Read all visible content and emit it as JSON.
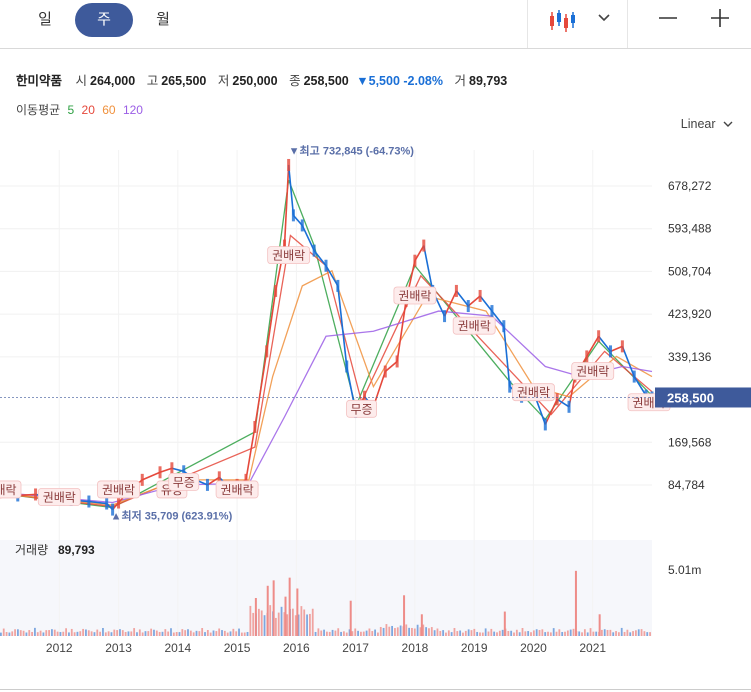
{
  "tabs": [
    {
      "label": "일",
      "active": false
    },
    {
      "label": "주",
      "active": true
    },
    {
      "label": "월",
      "active": false
    }
  ],
  "toolbar": {
    "chart_type_icon": "candlestick-icon",
    "dropdown_icon": "chevron-down-icon",
    "zoom_out_label": "—",
    "zoom_in_label": "+"
  },
  "stock": {
    "name": "한미약품",
    "open_label": "시",
    "open": "264,000",
    "high_label": "고",
    "high": "265,500",
    "low_label": "저",
    "low": "250,000",
    "close_label": "종",
    "close": "258,500",
    "change": "▼5,500",
    "change_pct": "-2.08%",
    "volume_label": "거",
    "volume": "89,793"
  },
  "moving_average": {
    "label": "이동평균",
    "periods": [
      {
        "label": "5",
        "color": "#2ea043"
      },
      {
        "label": "20",
        "color": "#e5483b"
      },
      {
        "label": "60",
        "color": "#f0913c"
      },
      {
        "label": "120",
        "color": "#9b5ee6"
      }
    ]
  },
  "scale_mode": "Linear",
  "colors": {
    "up": "#e5483b",
    "down": "#1a6fd6",
    "accent": "#3e5a9b"
  },
  "chart_data": {
    "type": "line",
    "x_labels": [
      "2012",
      "2013",
      "2014",
      "2015",
      "2016",
      "2017",
      "2018",
      "2019",
      "2020",
      "2021"
    ],
    "y_ticks": [
      678272,
      593488,
      508704,
      423920,
      339136,
      169568,
      84784
    ],
    "ylim": [
      0,
      780000
    ],
    "current_price": 258500,
    "current_price_label": "258,500",
    "price_series": [
      [
        "2011.0",
        70000
      ],
      [
        "2011.3",
        64000
      ],
      [
        "2011.6",
        66000
      ],
      [
        "2011.9",
        60000
      ],
      [
        "2012.2",
        55000
      ],
      [
        "2012.5",
        52000
      ],
      [
        "2012.8",
        48000
      ],
      [
        "2012.9",
        36000
      ],
      [
        "2013.0",
        50000
      ],
      [
        "2013.2",
        75000
      ],
      [
        "2013.4",
        95000
      ],
      [
        "2013.7",
        110000
      ],
      [
        "2013.9",
        118000
      ],
      [
        "2014.1",
        112000
      ],
      [
        "2014.3",
        95000
      ],
      [
        "2014.5",
        85000
      ],
      [
        "2014.7",
        100000
      ],
      [
        "2014.9",
        75000
      ],
      [
        "2015.0",
        85000
      ],
      [
        "2015.15",
        95000
      ],
      [
        "2015.3",
        200000
      ],
      [
        "2015.5",
        350000
      ],
      [
        "2015.65",
        470000
      ],
      [
        "2015.8",
        560000
      ],
      [
        "2015.87",
        720000
      ],
      [
        "2015.95",
        620000
      ],
      [
        "2016.1",
        600000
      ],
      [
        "2016.3",
        550000
      ],
      [
        "2016.5",
        520000
      ],
      [
        "2016.7",
        480000
      ],
      [
        "2016.85",
        320000
      ],
      [
        "2017.0",
        230000
      ],
      [
        "2017.15",
        260000
      ],
      [
        "2017.3",
        240000
      ],
      [
        "2017.5",
        310000
      ],
      [
        "2017.7",
        330000
      ],
      [
        "2017.85",
        450000
      ],
      [
        "2018.0",
        530000
      ],
      [
        "2018.15",
        560000
      ],
      [
        "2018.3",
        470000
      ],
      [
        "2018.5",
        420000
      ],
      [
        "2018.7",
        470000
      ],
      [
        "2018.9",
        440000
      ],
      [
        "2019.1",
        460000
      ],
      [
        "2019.3",
        430000
      ],
      [
        "2019.5",
        400000
      ],
      [
        "2019.6",
        280000
      ],
      [
        "2019.8",
        260000
      ],
      [
        "2020.0",
        270000
      ],
      [
        "2020.2",
        205000
      ],
      [
        "2020.4",
        255000
      ],
      [
        "2020.6",
        240000
      ],
      [
        "2020.7",
        300000
      ],
      [
        "2020.9",
        340000
      ],
      [
        "2021.1",
        380000
      ],
      [
        "2021.3",
        350000
      ],
      [
        "2021.5",
        360000
      ],
      [
        "2021.7",
        300000
      ],
      [
        "2021.9",
        262000
      ],
      [
        "2022.0",
        258500
      ]
    ],
    "ma_series": [
      {
        "name": "5",
        "color": "#2ea043",
        "values": [
          [
            "2011.0",
            68000
          ],
          [
            "2012.9",
            40000
          ],
          [
            "2015.3",
            190000
          ],
          [
            "2015.87",
            690000
          ],
          [
            "2016.3",
            560000
          ],
          [
            "2017.0",
            240000
          ],
          [
            "2018.0",
            520000
          ],
          [
            "2019.6",
            290000
          ],
          [
            "2020.2",
            215000
          ],
          [
            "2021.1",
            370000
          ],
          [
            "2022.0",
            262000
          ]
        ]
      },
      {
        "name": "20",
        "color": "#e5483b",
        "values": [
          [
            "2011.0",
            68000
          ],
          [
            "2012.9",
            42000
          ],
          [
            "2015.3",
            160000
          ],
          [
            "2015.9",
            580000
          ],
          [
            "2016.5",
            520000
          ],
          [
            "2017.1",
            250000
          ],
          [
            "2018.1",
            500000
          ],
          [
            "2019.7",
            300000
          ],
          [
            "2020.3",
            225000
          ],
          [
            "2021.2",
            350000
          ],
          [
            "2022.0",
            270000
          ]
        ]
      },
      {
        "name": "60",
        "color": "#f0913c",
        "values": [
          [
            "2011.0",
            68000
          ],
          [
            "2012.9",
            45000
          ],
          [
            "2014.0",
            95000
          ],
          [
            "2015.2",
            95000
          ],
          [
            "2015.6",
            300000
          ],
          [
            "2016.1",
            480000
          ],
          [
            "2016.6",
            510000
          ],
          [
            "2017.3",
            280000
          ],
          [
            "2018.2",
            460000
          ],
          [
            "2019.2",
            430000
          ],
          [
            "2020.0",
            280000
          ],
          [
            "2020.6",
            260000
          ],
          [
            "2021.4",
            340000
          ],
          [
            "2022.0",
            300000
          ]
        ]
      },
      {
        "name": "120",
        "color": "#9b5ee6",
        "values": [
          [
            "2011.0",
            70000
          ],
          [
            "2012.9",
            50000
          ],
          [
            "2014.0",
            85000
          ],
          [
            "2015.2",
            88000
          ],
          [
            "2015.8",
            220000
          ],
          [
            "2016.5",
            380000
          ],
          [
            "2017.3",
            390000
          ],
          [
            "2018.4",
            430000
          ],
          [
            "2019.3",
            420000
          ],
          [
            "2020.2",
            320000
          ],
          [
            "2020.8",
            300000
          ],
          [
            "2021.5",
            320000
          ],
          [
            "2022.0",
            310000
          ]
        ]
      }
    ],
    "volume": {
      "label": "거래량",
      "value": "89,793",
      "max_tick": "5.01m",
      "spikes": [
        [
          "2015.3",
          2.8
        ],
        [
          "2015.5",
          3.7
        ],
        [
          "2015.6",
          4.1
        ],
        [
          "2015.8",
          2.9
        ],
        [
          "2015.87",
          4.3
        ],
        [
          "2016.0",
          3.5
        ],
        [
          "2016.9",
          2.6
        ],
        [
          "2017.8",
          3.0
        ],
        [
          "2018.1",
          1.6
        ],
        [
          "2019.5",
          1.8
        ],
        [
          "2020.7",
          4.8
        ],
        [
          "2021.1",
          1.6
        ]
      ]
    },
    "annotations": [
      {
        "x": "2015.87",
        "y": 732845,
        "text": "▼최고 732,845 (-64.73%)"
      },
      {
        "x": "2012.9",
        "y": 35709,
        "text": "▲최저 35,709 (623.91%)"
      }
    ],
    "event_markers": [
      {
        "x": "2011.0",
        "y": 75000,
        "text": "권배락"
      },
      {
        "x": "2012.0",
        "y": 60000,
        "text": "권배락"
      },
      {
        "x": "2013.0",
        "y": 75000,
        "text": "권배락"
      },
      {
        "x": "2013.9",
        "y": 75000,
        "text": "유증"
      },
      {
        "x": "2014.1",
        "y": 90000,
        "text": "무증"
      },
      {
        "x": "2015.0",
        "y": 75000,
        "text": "권배락"
      },
      {
        "x": "2015.87",
        "y": 540000,
        "text": "권배락"
      },
      {
        "x": "2017.1",
        "y": 235000,
        "text": "무증"
      },
      {
        "x": "2018.0",
        "y": 460000,
        "text": "권배락"
      },
      {
        "x": "2019.0",
        "y": 400000,
        "text": "권배락"
      },
      {
        "x": "2020.0",
        "y": 268000,
        "text": "권배락"
      },
      {
        "x": "2021.0",
        "y": 310000,
        "text": "권배락"
      },
      {
        "x": "2021.95",
        "y": 248000,
        "text": "권배락"
      }
    ]
  }
}
